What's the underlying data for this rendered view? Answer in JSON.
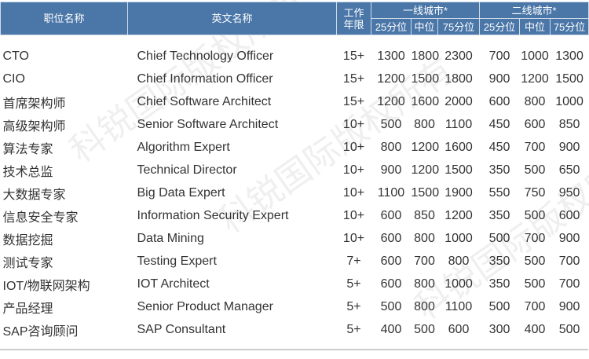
{
  "watermark": "科锐国际版权所有",
  "headers": {
    "title_cn": "职位名称",
    "title_en": "英文名称",
    "years": "工作年限",
    "tier1": "一线城市*",
    "tier2": "二线城市*",
    "p25": "25分位",
    "median": "中位",
    "p75": "75分位"
  },
  "rows": [
    [
      "CTO",
      "Chief Technology Officer",
      "15+",
      "1300",
      "1800",
      "2300",
      "700",
      "1000",
      "1300"
    ],
    [
      "CIO",
      "Chief Information Officer",
      "15+",
      "1200",
      "1500",
      "1800",
      "900",
      "1200",
      "1500"
    ],
    [
      "首席架构师",
      "Chief Software Architect",
      "15+",
      "1200",
      "1600",
      "2000",
      "600",
      "800",
      "1000"
    ],
    [
      "高级架构师",
      "Senior Software Architect",
      "10+",
      "500",
      "800",
      "1100",
      "450",
      "600",
      "850"
    ],
    [
      "算法专家",
      "Algorithm Expert",
      "10+",
      "800",
      "1200",
      "1600",
      "450",
      "700",
      "900"
    ],
    [
      "技术总监",
      "Technical Director",
      "10+",
      "900",
      "1200",
      "1500",
      "350",
      "500",
      "650"
    ],
    [
      "大数据专家",
      "Big Data Expert",
      "10+",
      "1100",
      "1500",
      "1900",
      "550",
      "750",
      "950"
    ],
    [
      "信息安全专家",
      "Information Security Expert",
      "10+",
      "600",
      "850",
      "1200",
      "350",
      "500",
      "600"
    ],
    [
      "数据挖掘",
      "Data Mining",
      "10+",
      "600",
      "800",
      "1000",
      "500",
      "700",
      "900"
    ],
    [
      "测试专家",
      "Testing Expert",
      "7+",
      "600",
      "700",
      "800",
      "350",
      "500",
      "700"
    ],
    [
      "IOT/物联网架构",
      "IOT Architect",
      "5+",
      "600",
      "800",
      "1000",
      "350",
      "500",
      "700"
    ],
    [
      "产品经理",
      "Senior Product Manager",
      "5+",
      "500",
      "800",
      "1100",
      "500",
      "700",
      "900"
    ],
    [
      "SAP咨询顾问",
      "SAP Consultant",
      "5+",
      "400",
      "500",
      "600",
      "300",
      "400",
      "500"
    ]
  ]
}
